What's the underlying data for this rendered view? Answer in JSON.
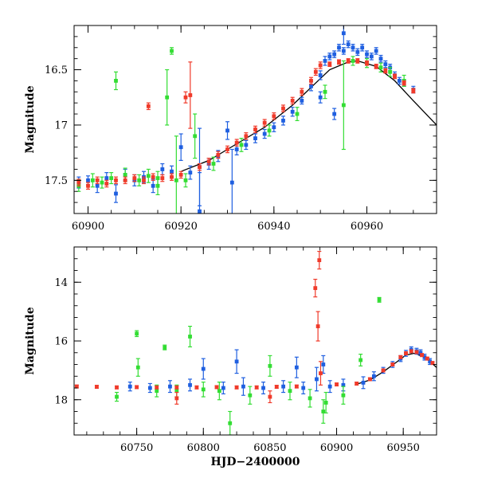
{
  "chart_data": [
    {
      "type": "scatter",
      "panel": "top",
      "title": "",
      "xlabel": "",
      "ylabel": "Magnitude",
      "xlim": [
        60897,
        60975
      ],
      "ylim": [
        17.8,
        16.1
      ],
      "y_inverted": true,
      "grid": false,
      "xticks": [
        60900,
        60920,
        60940,
        60960
      ],
      "xtick_labels": [
        "60900",
        "60920",
        "60940",
        "60960"
      ],
      "yticks": [
        16.5,
        17,
        17.5
      ],
      "ytick_labels": [
        "16.5",
        "17",
        "17.5"
      ],
      "model_curve": {
        "name": "model",
        "color": "#000000",
        "x": [
          60920,
          60926,
          60932,
          60938,
          60944,
          60948,
          60952,
          60956,
          60958,
          60962,
          60966,
          60970,
          60975
        ],
        "y": [
          17.42,
          17.32,
          17.17,
          17.02,
          16.82,
          16.66,
          16.5,
          16.43,
          16.42,
          16.47,
          16.6,
          16.78,
          17.0
        ]
      },
      "series": [
        {
          "name": "blue",
          "color": "#1f5fe0",
          "x": [
            60898,
            60900,
            60902,
            60904,
            60906,
            60908,
            60910,
            60912,
            60914,
            60916,
            60918,
            60920,
            60922,
            60924,
            60926,
            60928,
            60930,
            60931,
            60932,
            60934,
            60936,
            60938,
            60940,
            60942,
            60944,
            60946,
            60948,
            60950,
            60951,
            60952,
            60953,
            60954,
            60955,
            60956,
            60957,
            60958,
            60959,
            60960,
            60961,
            60962,
            60963,
            60964,
            60965,
            60966,
            60967,
            60968,
            60970,
            60924,
            60950,
            60953,
            60955
          ],
          "y": [
            17.52,
            17.5,
            17.55,
            17.48,
            17.62,
            17.45,
            17.5,
            17.47,
            17.55,
            17.4,
            17.42,
            17.2,
            17.43,
            17.38,
            17.35,
            17.28,
            17.05,
            17.52,
            17.22,
            17.18,
            17.12,
            17.08,
            17.02,
            16.96,
            16.88,
            16.78,
            16.65,
            16.55,
            16.42,
            16.38,
            16.36,
            16.3,
            16.33,
            16.27,
            16.3,
            16.34,
            16.3,
            16.36,
            16.38,
            16.33,
            16.4,
            16.45,
            16.48,
            16.55,
            16.6,
            16.62,
            16.68,
            17.78,
            16.75,
            16.9,
            16.17
          ],
          "err": [
            0.05,
            0.04,
            0.06,
            0.05,
            0.08,
            0.05,
            0.05,
            0.05,
            0.06,
            0.05,
            0.05,
            0.12,
            0.06,
            0.35,
            0.05,
            0.05,
            0.08,
            0.3,
            0.05,
            0.04,
            0.04,
            0.04,
            0.04,
            0.04,
            0.04,
            0.03,
            0.04,
            0.04,
            0.04,
            0.03,
            0.03,
            0.03,
            0.03,
            0.03,
            0.03,
            0.03,
            0.03,
            0.03,
            0.03,
            0.03,
            0.03,
            0.03,
            0.03,
            0.03,
            0.03,
            0.03,
            0.03,
            0.35,
            0.05,
            0.05,
            0.1
          ]
        },
        {
          "name": "green",
          "color": "#33dd33",
          "x": [
            60898,
            60901,
            60903,
            60905,
            60906,
            60908,
            60911,
            60913,
            60915,
            60917,
            60918,
            60919,
            60921,
            60923,
            60927,
            60933,
            60939,
            60945,
            60951,
            60955,
            60957,
            60960,
            60963,
            60965,
            60968,
            60915
          ],
          "y": [
            17.55,
            17.5,
            17.52,
            17.48,
            16.6,
            17.45,
            17.5,
            17.46,
            17.48,
            16.75,
            16.33,
            17.5,
            17.5,
            17.1,
            17.35,
            17.18,
            17.05,
            16.9,
            16.7,
            16.82,
            16.42,
            16.44,
            16.48,
            16.52,
            16.6,
            17.55
          ],
          "err": [
            0.05,
            0.06,
            0.05,
            0.05,
            0.08,
            0.06,
            0.05,
            0.06,
            0.06,
            0.25,
            0.03,
            0.4,
            0.06,
            0.2,
            0.06,
            0.06,
            0.05,
            0.06,
            0.06,
            0.4,
            0.04,
            0.04,
            0.04,
            0.04,
            0.05,
            0.08
          ]
        },
        {
          "name": "red",
          "color": "#f03a2a",
          "x": [
            60898,
            60900,
            60902,
            60904,
            60906,
            60908,
            60910,
            60912,
            60913,
            60914,
            60916,
            60918,
            60920,
            60921,
            60922,
            60924,
            60926,
            60928,
            60930,
            60932,
            60934,
            60936,
            60938,
            60940,
            60942,
            60944,
            60946,
            60948,
            60949,
            60950,
            60952,
            60954,
            60956,
            60958,
            60960,
            60962,
            60964,
            60966,
            60968,
            60970
          ],
          "y": [
            17.52,
            17.55,
            17.5,
            17.53,
            17.5,
            17.5,
            17.48,
            17.5,
            16.83,
            17.47,
            17.48,
            17.47,
            17.45,
            16.75,
            16.73,
            17.38,
            17.33,
            17.27,
            17.22,
            17.16,
            17.1,
            17.04,
            16.98,
            16.92,
            16.85,
            16.78,
            16.7,
            16.6,
            16.52,
            16.46,
            16.45,
            16.43,
            16.42,
            16.42,
            16.44,
            16.47,
            16.51,
            16.56,
            16.62,
            16.69
          ],
          "err": [
            0.03,
            0.03,
            0.03,
            0.03,
            0.03,
            0.03,
            0.03,
            0.03,
            0.03,
            0.03,
            0.03,
            0.03,
            0.03,
            0.05,
            0.3,
            0.03,
            0.03,
            0.03,
            0.03,
            0.03,
            0.03,
            0.03,
            0.03,
            0.03,
            0.03,
            0.03,
            0.03,
            0.03,
            0.03,
            0.03,
            0.02,
            0.02,
            0.02,
            0.02,
            0.02,
            0.02,
            0.02,
            0.02,
            0.02,
            0.02
          ]
        }
      ]
    },
    {
      "type": "scatter",
      "panel": "bottom",
      "title": "",
      "xlabel": "HJD−2400000",
      "ylabel": "Magnitude",
      "xlim": [
        60703,
        60975
      ],
      "ylim": [
        19.2,
        12.8
      ],
      "y_inverted": true,
      "grid": false,
      "xticks": [
        60750,
        60800,
        60850,
        60900,
        60950
      ],
      "xtick_labels": [
        "60750",
        "60800",
        "60850",
        "60900",
        "60950"
      ],
      "yticks": [
        14,
        16,
        18
      ],
      "ytick_labels": [
        "14",
        "16",
        "18"
      ],
      "model_curve": {
        "name": "model",
        "color": "#000000",
        "x": [
          60915,
          60925,
          60935,
          60945,
          60952,
          60958,
          60964,
          60970,
          60975
        ],
        "y": [
          17.47,
          17.33,
          17.05,
          16.72,
          16.48,
          16.42,
          16.5,
          16.7,
          16.9
        ]
      },
      "series": [
        {
          "name": "blue",
          "color": "#1f5fe0",
          "x": [
            60745,
            60760,
            60775,
            60790,
            60800,
            60815,
            60830,
            60845,
            60860,
            60875,
            60885,
            60895,
            60905,
            60920,
            60928,
            60935,
            60942,
            60948,
            60952,
            60956,
            60960,
            60963,
            60966,
            60970,
            60825,
            60870,
            60890
          ],
          "y": [
            17.55,
            17.6,
            17.55,
            17.5,
            16.95,
            17.6,
            17.55,
            17.6,
            17.55,
            17.6,
            17.3,
            17.55,
            17.5,
            17.42,
            17.2,
            17.0,
            16.8,
            16.6,
            16.42,
            16.3,
            16.35,
            16.4,
            16.55,
            16.7,
            16.7,
            16.9,
            16.8
          ],
          "err": [
            0.15,
            0.15,
            0.2,
            0.2,
            0.35,
            0.2,
            0.3,
            0.2,
            0.2,
            0.2,
            0.4,
            0.2,
            0.2,
            0.2,
            0.15,
            0.1,
            0.1,
            0.1,
            0.1,
            0.1,
            0.1,
            0.1,
            0.1,
            0.1,
            0.4,
            0.35,
            0.3
          ]
        },
        {
          "name": "green",
          "color": "#33dd33",
          "x": [
            60735,
            60750,
            60765,
            60771,
            60780,
            60790,
            60800,
            60812,
            60820,
            60835,
            60850,
            60865,
            60880,
            60892,
            60905,
            60918,
            60932,
            60751,
            60890
          ],
          "y": [
            17.9,
            15.75,
            17.7,
            16.22,
            17.7,
            15.85,
            17.65,
            17.7,
            18.8,
            17.85,
            16.85,
            17.7,
            17.95,
            18.1,
            17.85,
            16.65,
            14.6,
            16.9,
            18.4
          ],
          "err": [
            0.15,
            0.1,
            0.2,
            0.08,
            0.2,
            0.35,
            0.25,
            0.3,
            0.4,
            0.3,
            0.35,
            0.3,
            0.3,
            0.35,
            0.3,
            0.2,
            0.08,
            0.3,
            0.4
          ]
        },
        {
          "name": "red",
          "color": "#f03a2a",
          "x": [
            60705,
            60720,
            60735,
            60750,
            60765,
            60780,
            60795,
            60810,
            60825,
            60840,
            60855,
            60870,
            60884,
            60886,
            60887,
            60888,
            60900,
            60915,
            60925,
            60935,
            60942,
            60948,
            60952,
            60956,
            60960,
            60964,
            60968,
            60972,
            60780,
            60850
          ],
          "y": [
            17.55,
            17.56,
            17.58,
            17.57,
            17.58,
            17.58,
            17.58,
            17.57,
            17.58,
            17.58,
            17.56,
            17.55,
            14.2,
            15.5,
            13.25,
            17.1,
            17.48,
            17.45,
            17.3,
            17.0,
            16.8,
            16.55,
            16.42,
            16.35,
            16.38,
            16.48,
            16.6,
            16.75,
            17.95,
            17.9
          ],
          "err": [
            0.05,
            0.05,
            0.05,
            0.05,
            0.05,
            0.05,
            0.05,
            0.05,
            0.05,
            0.05,
            0.05,
            0.05,
            0.3,
            0.5,
            0.3,
            0.4,
            0.05,
            0.05,
            0.05,
            0.05,
            0.05,
            0.05,
            0.05,
            0.05,
            0.05,
            0.05,
            0.05,
            0.05,
            0.2,
            0.2
          ]
        }
      ]
    }
  ]
}
